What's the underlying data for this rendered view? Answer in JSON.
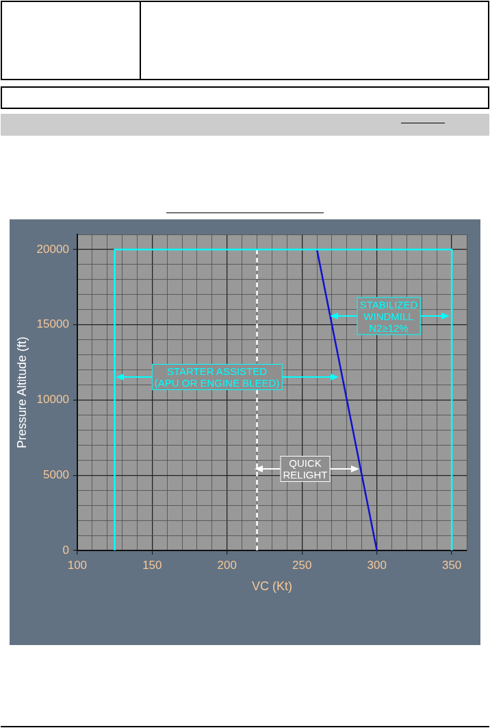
{
  "chart_data": {
    "type": "line",
    "xlabel": "VC (Kt)",
    "ylabel": "Pressure Altitude (ft)",
    "xlim": [
      100,
      360
    ],
    "ylim": [
      0,
      21000
    ],
    "xticks": [
      100,
      {
        "value": 110,
        "label": null
      },
      {
        "value": 120,
        "label": null
      },
      {
        "value": 130,
        "label": null
      },
      {
        "value": 140,
        "label": null
      },
      150,
      {
        "value": 160,
        "label": null
      },
      {
        "value": 170,
        "label": null
      },
      {
        "value": 180,
        "label": null
      },
      {
        "value": 190,
        "label": null
      },
      200,
      {
        "value": 210,
        "label": null
      },
      {
        "value": 220,
        "label": null
      },
      {
        "value": 230,
        "label": null
      },
      {
        "value": 240,
        "label": null
      },
      250,
      {
        "value": 260,
        "label": null
      },
      {
        "value": 270,
        "label": null
      },
      {
        "value": 280,
        "label": null
      },
      {
        "value": 290,
        "label": null
      },
      300,
      {
        "value": 310,
        "label": null
      },
      {
        "value": 320,
        "label": null
      },
      {
        "value": 330,
        "label": null
      },
      {
        "value": 340,
        "label": null
      },
      350,
      {
        "value": 360,
        "label": null
      }
    ],
    "yticks": [
      0,
      {
        "value": 1000,
        "label": null
      },
      {
        "value": 2000,
        "label": null
      },
      {
        "value": 3000,
        "label": null
      },
      {
        "value": 4000,
        "label": null
      },
      5000,
      {
        "value": 6000,
        "label": null
      },
      {
        "value": 7000,
        "label": null
      },
      {
        "value": 8000,
        "label": null
      },
      {
        "value": 9000,
        "label": null
      },
      10000,
      {
        "value": 11000,
        "label": null
      },
      {
        "value": 12000,
        "label": null
      },
      {
        "value": 13000,
        "label": null
      },
      {
        "value": 14000,
        "label": null
      },
      15000,
      {
        "value": 16000,
        "label": null
      },
      {
        "value": 17000,
        "label": null
      },
      {
        "value": 18000,
        "label": null
      },
      {
        "value": 19000,
        "label": null
      },
      20000,
      {
        "value": 21000,
        "label": null
      }
    ],
    "grid": true,
    "marker": "none",
    "legend": false,
    "series": [
      {
        "color": "#00ffff",
        "x": [
          125,
          125,
          350,
          350
        ],
        "values": [
          0,
          20000,
          20000,
          0
        ]
      },
      {
        "color": "#ffffff",
        "line_style": "dashed",
        "x": [
          220,
          220
        ],
        "values": [
          0,
          20000
        ]
      },
      {
        "color": "#1010d0",
        "x": [
          300,
          260
        ],
        "values": [
          0,
          20000
        ]
      }
    ],
    "annotations": [
      "STARTER ASSISTED\n(APU OR ENGINE BLEED)",
      "STABILIZED\nWINDMILL\nN2≥12%",
      "QUICK\nRELIGHT"
    ]
  }
}
